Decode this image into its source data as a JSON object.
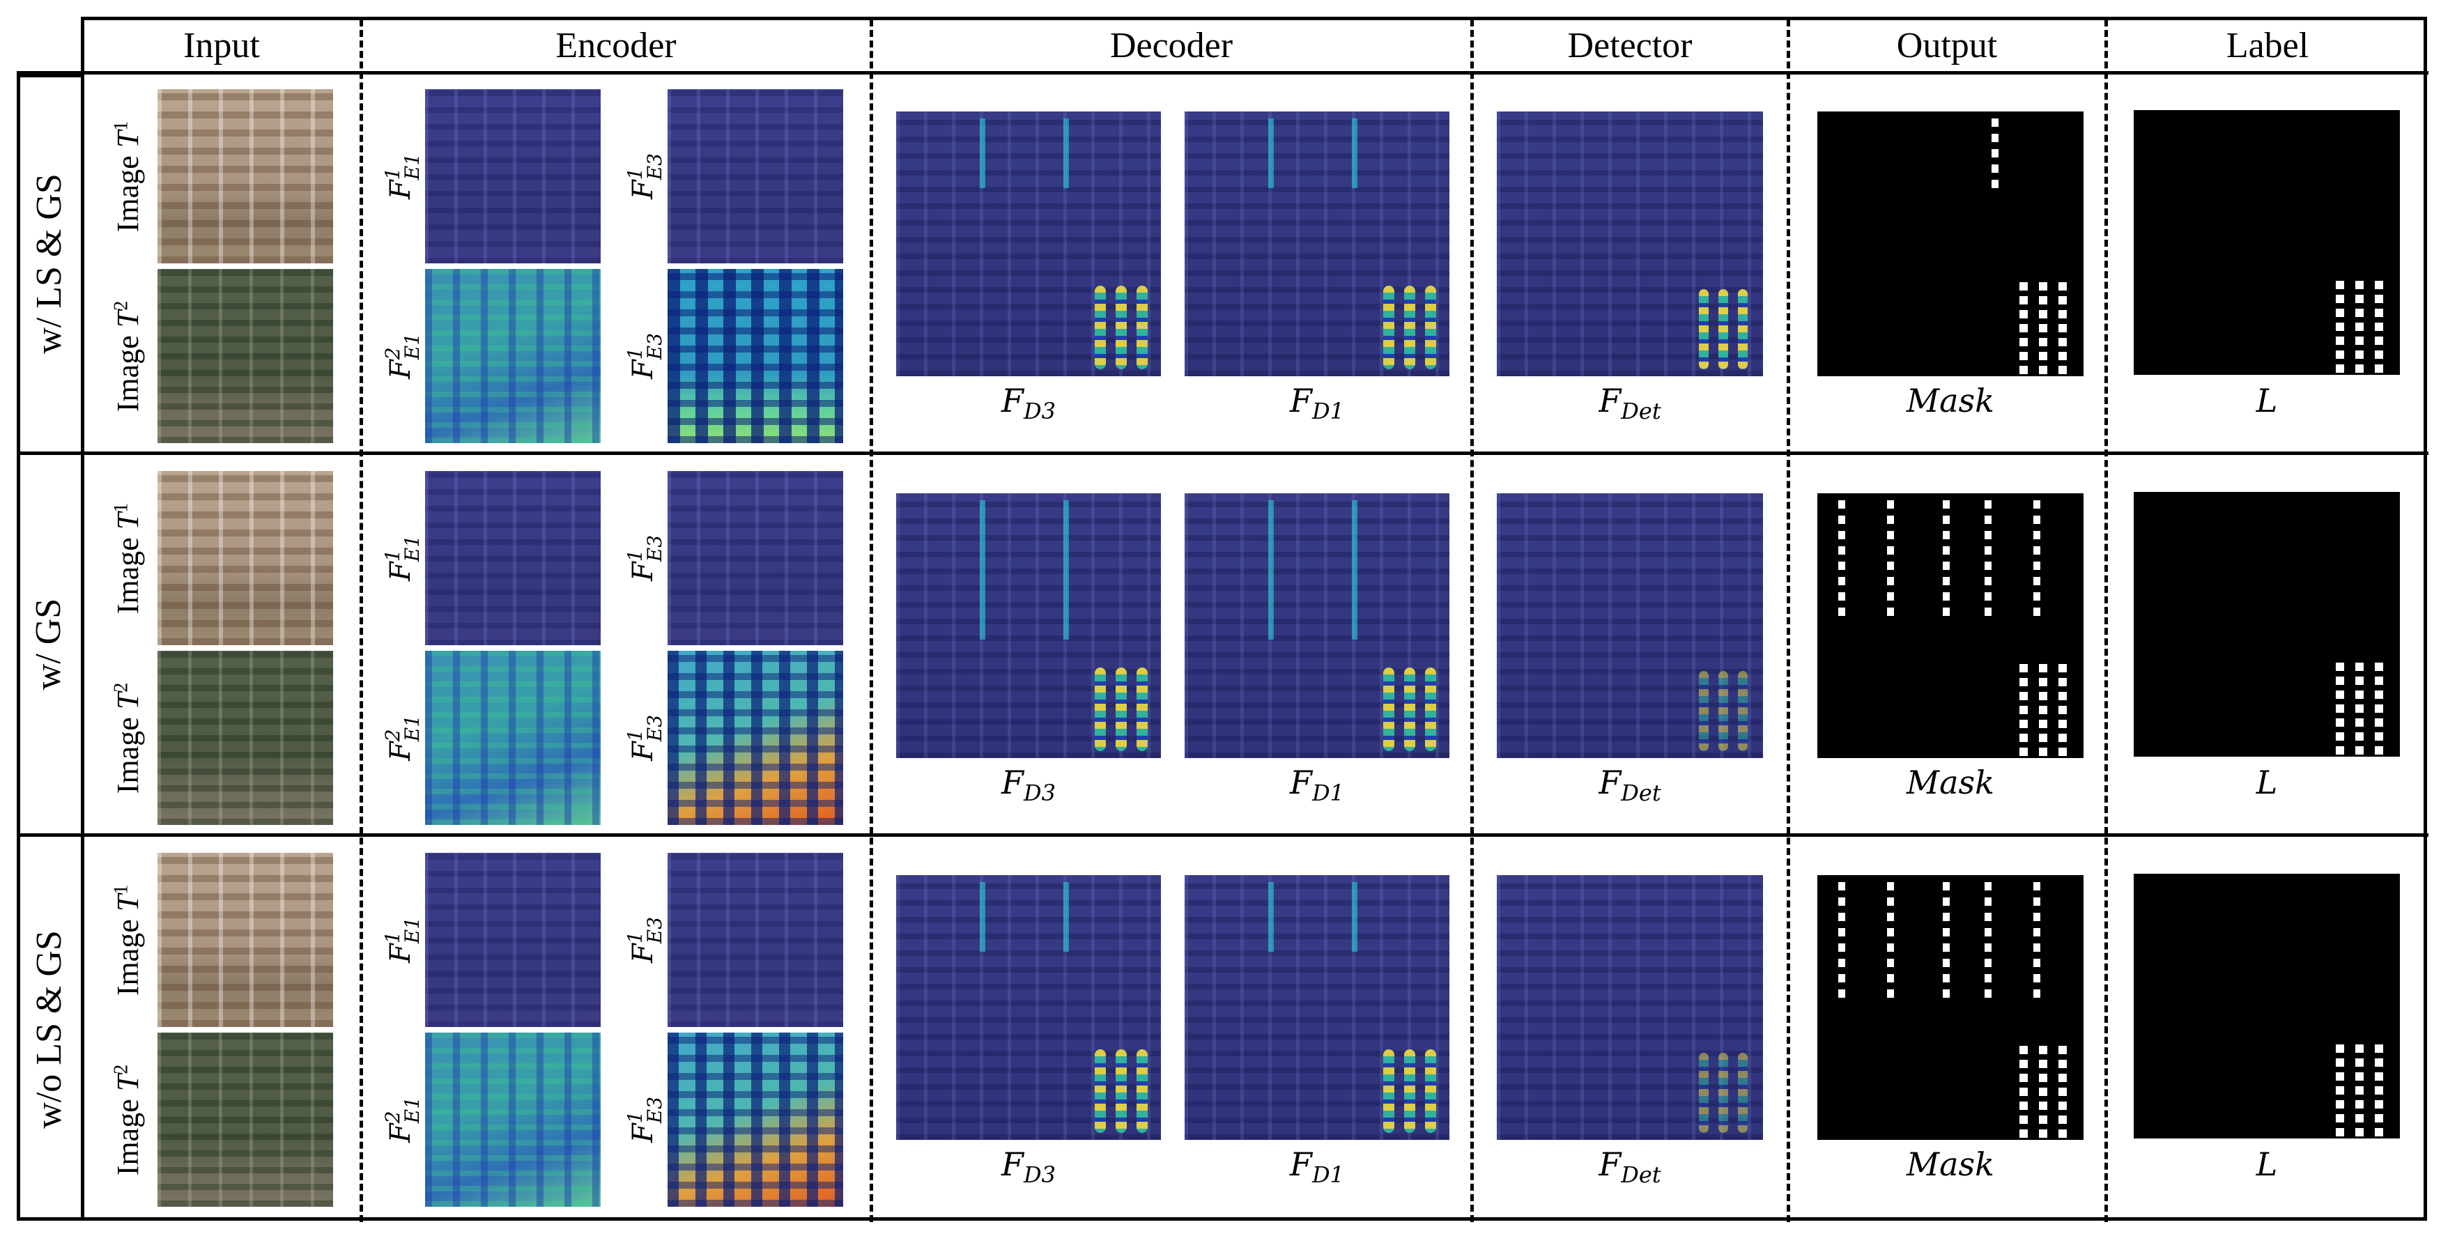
{
  "headers": {
    "input": "Input",
    "encoder": "Encoder",
    "decoder": "Decoder",
    "detector": "Detector",
    "output": "Output",
    "label": "Label"
  },
  "rows": [
    {
      "label": "w/ LS & GS"
    },
    {
      "label": "w/ GS"
    },
    {
      "label": "w/o LS & GS"
    }
  ],
  "input_labels": {
    "image1_text": "Image ",
    "image1_sym": "T",
    "image1_sup": "1",
    "image2_text": "Image ",
    "image2_sym": "T",
    "image2_sup": "2"
  },
  "encoder_labels": {
    "fe1_t1": {
      "sym": "F",
      "sup": "1",
      "sub": "E1"
    },
    "fe3_t1": {
      "sym": "F",
      "sup": "1",
      "sub": "E3"
    },
    "fe1_t2": {
      "sym": "F",
      "sup": "2",
      "sub": "E1"
    },
    "fe3_t2": {
      "sym": "F",
      "sup": "1",
      "sub": "E3"
    }
  },
  "captions": {
    "fd3": {
      "sym": "F",
      "sub": "D3"
    },
    "fd1": {
      "sym": "F",
      "sub": "D1"
    },
    "fdet": {
      "sym": "F",
      "sub": "Det"
    },
    "mask": "Mask",
    "label": "L"
  },
  "colors": {
    "border": "#000000",
    "background": "#ffffff"
  }
}
